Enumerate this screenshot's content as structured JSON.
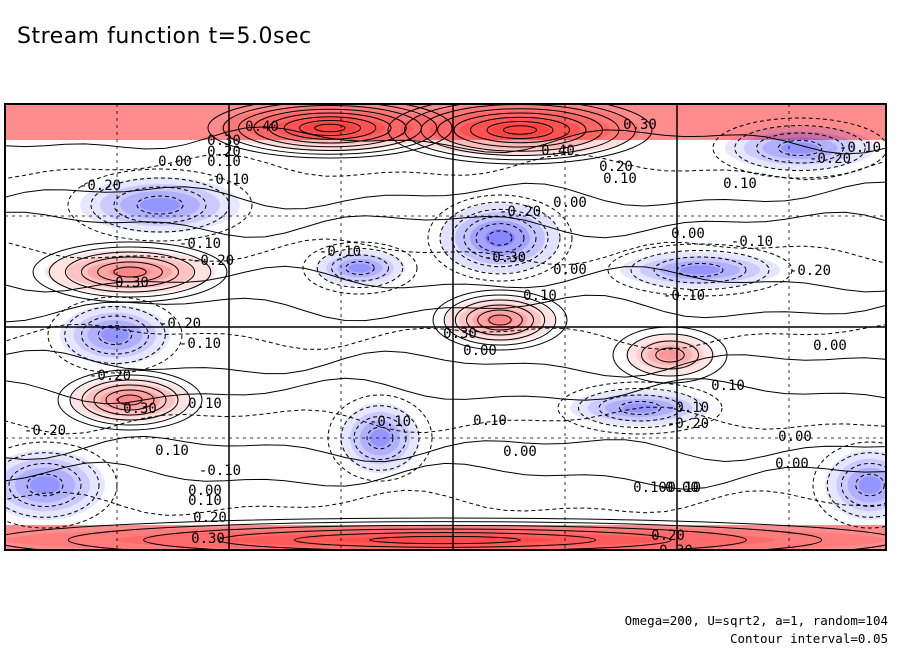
{
  "title": "Stream function t=5.0sec",
  "info": {
    "params": "Omega=200, U=sqrt2, a=1, random=104",
    "contour_interval": "Contour interval=0.05"
  },
  "colors": {
    "positive": "#ff0000",
    "negative": "#0000ff",
    "zero": "#ffffff",
    "lines": "#000000"
  },
  "chart_data": {
    "type": "heatmap",
    "title": "Stream function t=5.0sec",
    "contour_interval": 0.05,
    "color_scale": "blue-white-red (negative blue, positive red)",
    "line_style": "solid for positive, dashed for negative contours",
    "grid": true,
    "grid_columns": 4,
    "grid_rows": 2,
    "contour_labels": [
      "0.40",
      "0.30",
      "0.20",
      "0.10",
      "0.00",
      "-0.10",
      "-0.20",
      "-0.30"
    ],
    "features": [
      {
        "sign": "positive",
        "peak": 0.4,
        "note": "top band, left-centre"
      },
      {
        "sign": "positive",
        "peak": 0.4,
        "note": "top band, centre"
      },
      {
        "sign": "positive",
        "peak": 0.3,
        "note": "left, upper-middle"
      },
      {
        "sign": "positive",
        "peak": 0.3,
        "note": "left, lower-middle"
      },
      {
        "sign": "positive",
        "peak": 0.3,
        "note": "centre, middle"
      },
      {
        "sign": "positive",
        "peak": 0.2,
        "note": "right, middle"
      },
      {
        "sign": "positive",
        "peak": 0.3,
        "note": "bottom band"
      },
      {
        "sign": "negative",
        "peak": -0.3,
        "note": "centre, upper"
      },
      {
        "sign": "negative",
        "peak": -0.2,
        "note": "left, upper"
      },
      {
        "sign": "negative",
        "peak": -0.2,
        "note": "left, middle"
      },
      {
        "sign": "negative",
        "peak": -0.2,
        "note": "right, top"
      },
      {
        "sign": "negative",
        "peak": -0.2,
        "note": "left-centre, lower"
      },
      {
        "sign": "negative",
        "peak": -0.2,
        "note": "far left and right, lower"
      }
    ],
    "labels_on_plot": [
      {
        "text": "0.40",
        "where": "top band left"
      },
      {
        "text": "0.30",
        "where": "top band left"
      },
      {
        "text": "0.20",
        "where": "top band left"
      },
      {
        "text": "0.10",
        "where": "top band left"
      },
      {
        "text": "0.00",
        "where": "upper left"
      },
      {
        "text": "-0.10",
        "where": "upper left"
      },
      {
        "text": "0.40",
        "where": "top band centre"
      },
      {
        "text": "0.30",
        "where": "top right"
      },
      {
        "text": "0.20",
        "where": "top centre-right"
      },
      {
        "text": "0.10",
        "where": "top centre-right"
      },
      {
        "text": "0.00",
        "where": "centre-right"
      },
      {
        "text": "-0.20",
        "where": "top right"
      },
      {
        "text": "-0.10",
        "where": "top right"
      },
      {
        "text": "0.10",
        "where": "right upper"
      },
      {
        "text": "-0.20",
        "where": "left upper"
      },
      {
        "text": "-0.20",
        "where": "centre upper"
      },
      {
        "text": "-0.10",
        "where": "left-centre"
      },
      {
        "text": "0.00",
        "where": "right upper-middle"
      },
      {
        "text": "-0.10",
        "where": "right upper-middle"
      },
      {
        "text": "-0.20",
        "where": "right upper-middle"
      },
      {
        "text": "-0.10",
        "where": "left middle"
      },
      {
        "text": "-0.20",
        "where": "left middle"
      },
      {
        "text": "-0.30",
        "where": "centre"
      },
      {
        "text": "0.30",
        "where": "left middle"
      },
      {
        "text": "0.00",
        "where": "centre"
      },
      {
        "text": "0.10",
        "where": "centre"
      },
      {
        "text": "-0.10",
        "where": "right middle"
      },
      {
        "text": "-0.20",
        "where": "left middle"
      },
      {
        "text": "0.30",
        "where": "centre"
      },
      {
        "text": "0.00",
        "where": "centre"
      },
      {
        "text": "0.00",
        "where": "right middle"
      },
      {
        "text": "-0.10",
        "where": "left middle"
      },
      {
        "text": "-0.20",
        "where": "left lower-middle"
      },
      {
        "text": "0.30",
        "where": "left lower-middle"
      },
      {
        "text": "0.10",
        "where": "left lower-middle"
      },
      {
        "text": "-0.10",
        "where": "centre lower"
      },
      {
        "text": "0.10",
        "where": "right middle"
      },
      {
        "text": "-0.10",
        "where": "right middle"
      },
      {
        "text": "-0.20",
        "where": "right lower-middle"
      },
      {
        "text": "0.00",
        "where": "right lower-middle"
      },
      {
        "text": "0.10",
        "where": "centre lower"
      },
      {
        "text": "0.00",
        "where": "left lower"
      },
      {
        "text": "-0.20",
        "where": "left lower"
      },
      {
        "text": "0.10",
        "where": "right lower"
      },
      {
        "text": "-0.10",
        "where": "right lower"
      },
      {
        "text": "0.00",
        "where": "centre lower"
      },
      {
        "text": "-0.10",
        "where": "left lower"
      },
      {
        "text": "0.00",
        "where": "left lower"
      },
      {
        "text": "0.10",
        "where": "left lower"
      },
      {
        "text": "0.20",
        "where": "left lower"
      },
      {
        "text": "0.10",
        "where": "right lower"
      },
      {
        "text": "0.00",
        "where": "right lower"
      },
      {
        "text": "0.30",
        "where": "bottom band left"
      },
      {
        "text": "0.20",
        "where": "bottom band right"
      },
      {
        "text": "0.30",
        "where": "bottom band right"
      }
    ]
  }
}
